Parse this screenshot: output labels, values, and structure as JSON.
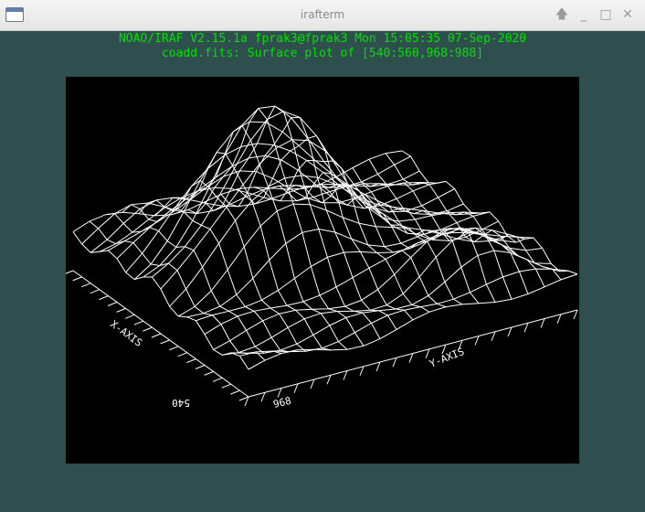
{
  "window": {
    "title": "irafterm",
    "controls": {
      "pin": "🡅",
      "minimize": "_",
      "maximize": "□",
      "close": "✕"
    }
  },
  "terminal": {
    "header_line1": "NOAO/IRAF V2.15.1a fprak3@fprak3 Mon 15:05:35 07-Sep-2020",
    "header_line2": "coadd.fits: Surface plot of [540:560,968:988]"
  },
  "plot": {
    "x_axis_label": "X-AXIS",
    "y_axis_label": "Y-AXIS",
    "x_start": "540",
    "x_end": "560",
    "y_start": "968",
    "y_end": "988"
  },
  "colors": {
    "background": "#2f4f4f",
    "text": "#00e000",
    "plot_bg": "#000000",
    "lines": "#ffffff"
  }
}
